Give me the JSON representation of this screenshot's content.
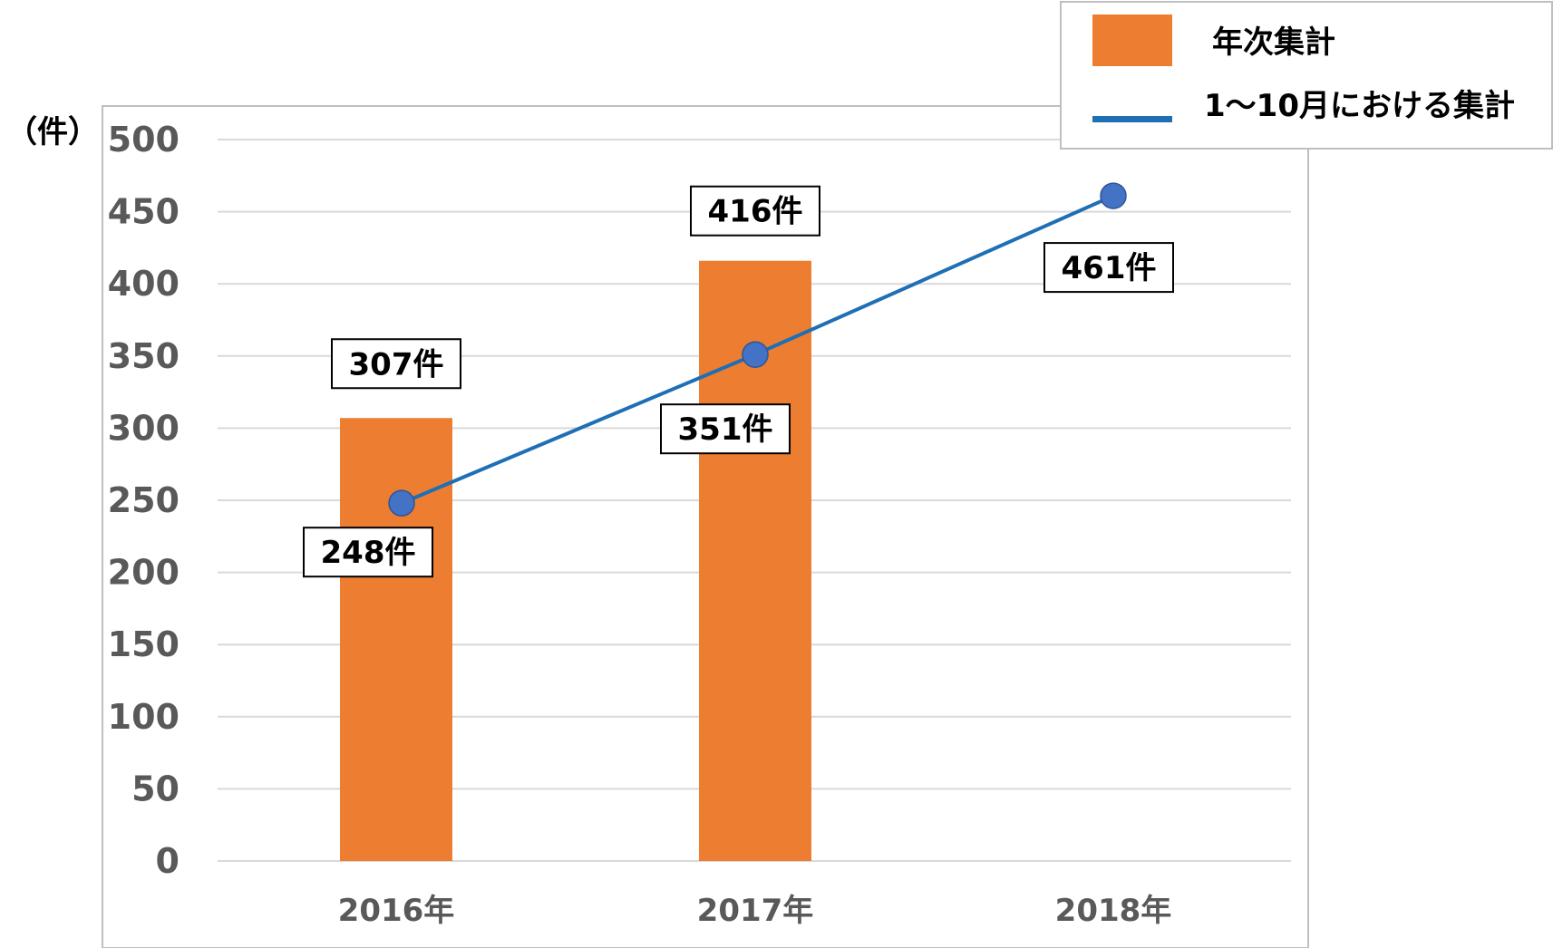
{
  "chart_data": {
    "type": "bar",
    "title": "",
    "xlabel": "",
    "ylabel": "（件）",
    "ylim": [
      0,
      500
    ],
    "yticks": [
      0,
      50,
      100,
      150,
      200,
      250,
      300,
      350,
      400,
      450,
      500
    ],
    "grid": true,
    "legend_position": "top-right",
    "categories": [
      "2016年",
      "2017年",
      "2018年"
    ],
    "series": [
      {
        "name": "年次集計",
        "type": "bar",
        "color": "#ED7D31",
        "values": [
          307,
          416,
          null
        ],
        "labels": [
          "307件",
          "416件",
          ""
        ]
      },
      {
        "name": "1～10月における集計",
        "type": "line",
        "color": "#1F6FB5",
        "marker_color": "#4472C4",
        "values": [
          248,
          351,
          461
        ],
        "labels": [
          "248件",
          "351件",
          "461件"
        ]
      }
    ]
  }
}
